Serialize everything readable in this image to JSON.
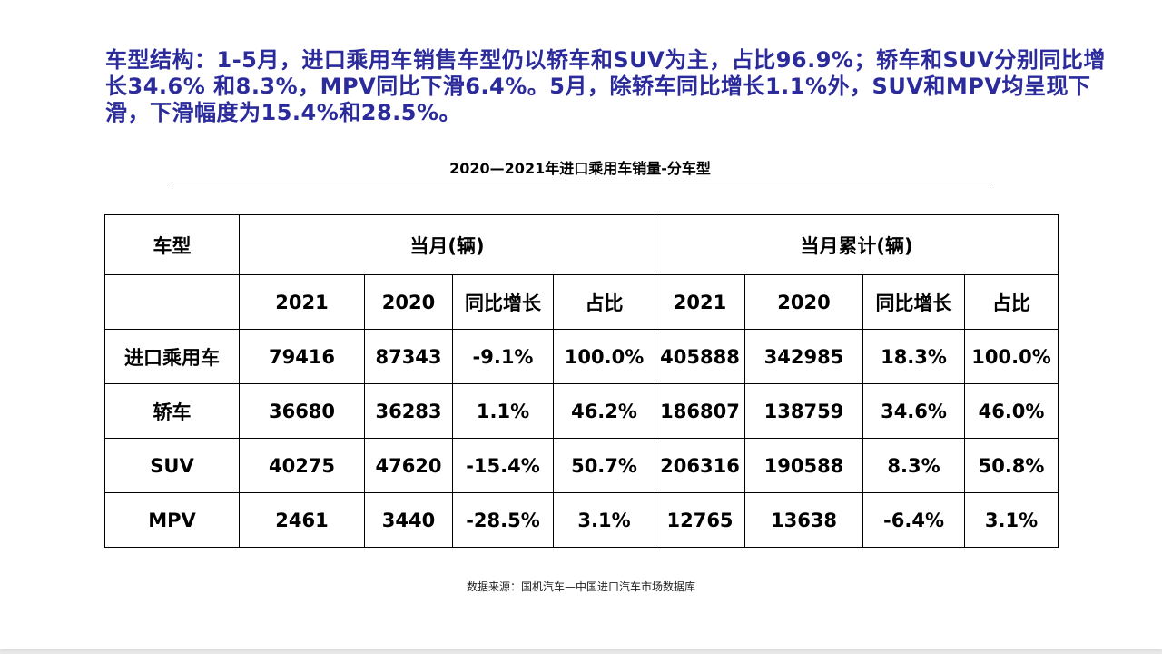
{
  "headline": "车型结构：1-5月，进口乘用车销售车型仍以轿车和SUV为主，占比96.9%；轿车和SUV分别同比增长34.6% 和8.3%，MPV同比下滑6.4%。5月，除轿车同比增长1.1%外，SUV和MPV均呈现下滑，下滑幅度为15.4%和28.5%。",
  "table_title": "2020—2021年进口乘用车销量-分车型",
  "table": {
    "col_type": "车型",
    "group_month": "当月(辆)",
    "group_cumulative": "当月累计(辆)",
    "sub_headers": [
      "2021",
      "2020",
      "同比增长",
      "占比",
      "2021",
      "2020",
      "同比增长",
      "占比"
    ],
    "rows": [
      [
        "进口乘用车",
        "79416",
        "87343",
        "-9.1%",
        "100.0%",
        "405888",
        "342985",
        "18.3%",
        "100.0%"
      ],
      [
        "轿车",
        "36680",
        "36283",
        "1.1%",
        "46.2%",
        "186807",
        "138759",
        "34.6%",
        "46.0%"
      ],
      [
        "SUV",
        "40275",
        "47620",
        "-15.4%",
        "50.7%",
        "206316",
        "190588",
        "8.3%",
        "50.8%"
      ],
      [
        "MPV",
        "2461",
        "3440",
        "-28.5%",
        "3.1%",
        "12765",
        "13638",
        "-6.4%",
        "3.1%"
      ]
    ]
  },
  "source": "数据来源：国机汽车—中国进口汽车市场数据库",
  "colors": {
    "headline": "#2b2b9c",
    "text": "#000000"
  }
}
